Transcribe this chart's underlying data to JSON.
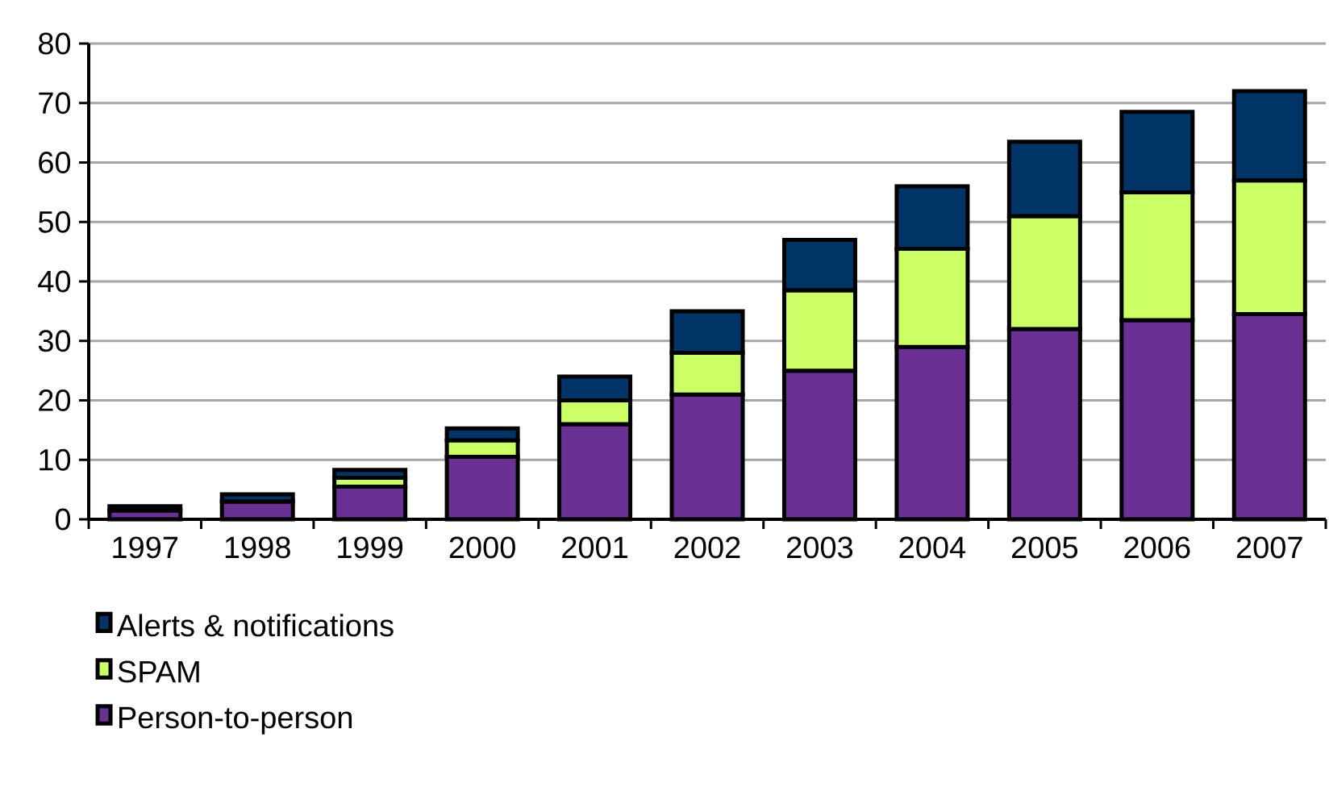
{
  "chart_data": {
    "type": "bar",
    "stacked": true,
    "categories": [
      "1997",
      "1998",
      "1999",
      "2000",
      "2001",
      "2002",
      "2003",
      "2004",
      "2005",
      "2006",
      "2007"
    ],
    "series": [
      {
        "name": "Person-to-person",
        "color": "#6a3093",
        "values": [
          1.5,
          3,
          5.5,
          10.5,
          16,
          21,
          25,
          29,
          32,
          33.5,
          34.5
        ]
      },
      {
        "name": "SPAM",
        "color": "#ccff66",
        "values": [
          0,
          null,
          1.5,
          2.8,
          4,
          7,
          13.5,
          16.5,
          19,
          21.5,
          22.5
        ]
      },
      {
        "name": "Alerts & notifications",
        "color": "#003366",
        "values": [
          0.7,
          1.2,
          1.3,
          2,
          4,
          7,
          8.5,
          10.5,
          12.5,
          13.5,
          15
        ]
      }
    ],
    "ylim": [
      0,
      80
    ],
    "yticks": [
      0,
      10,
      20,
      30,
      40,
      50,
      60,
      70,
      80
    ],
    "grid": "y",
    "legend": "bottom left"
  }
}
